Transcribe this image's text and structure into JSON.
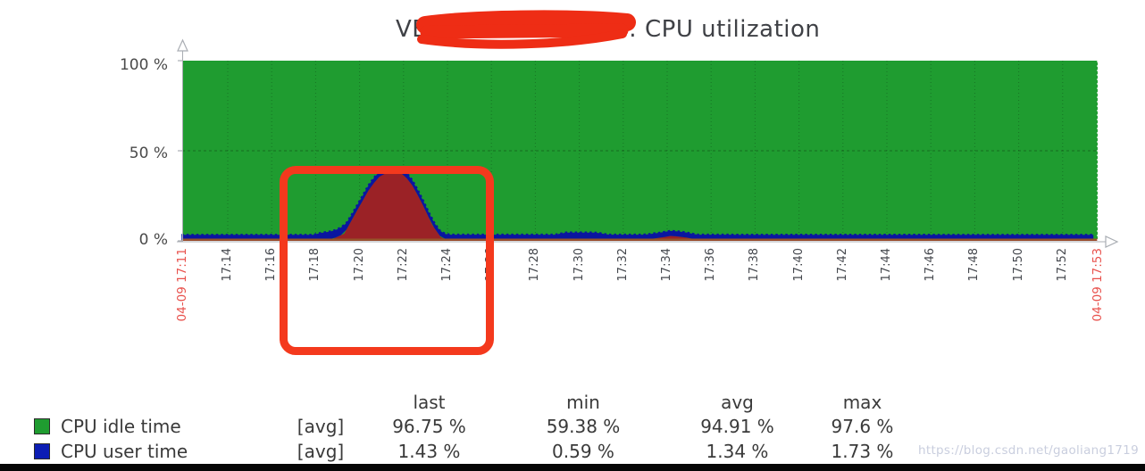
{
  "page": {
    "background": "#ffffff"
  },
  "title": {
    "visible_prefix": "VE",
    "visible_suffix": ": CPU utilization",
    "note": "hostname is covered by a red scribble annotation"
  },
  "colors": {
    "idle_green": "#1f9c30",
    "user_blue": "#0a16a0",
    "spike_red": "#9b2226",
    "baseline_brown": "#96562a",
    "axis_gray": "#a9adb3",
    "grid_dark": "rgba(0,0,0,0.25)",
    "grid_50pct": "rgba(0,0,0,0.30)",
    "right_edge_dash": "rgba(255,255,255,0.85)",
    "annotation_red": "#f4391d",
    "date_label_red": "#e8514c",
    "legend_swatch_idle": "#1f9c30",
    "legend_swatch_user": "#0c1db4",
    "watermark_gray": "#c9cede"
  },
  "chart_data": {
    "type": "area",
    "title": "VE(redacted): CPU utilization",
    "x_unit": "minutes after 17:00 on 04-09",
    "x_axis": {
      "start_label": "04-09 17:11",
      "end_label": "04-09 17:53",
      "ticks": [
        "17:14",
        "17:16",
        "17:18",
        "17:20",
        "17:22",
        "17:24",
        "17:26",
        "17:28",
        "17:30",
        "17:32",
        "17:34",
        "17:36",
        "17:38",
        "17:40",
        "17:42",
        "17:44",
        "17:46",
        "17:48",
        "17:50",
        "17:52"
      ]
    },
    "y_axis": {
      "ticks": [
        "100 %",
        "50 %",
        "0 %"
      ],
      "range": [
        0,
        100
      ],
      "unit": "%"
    },
    "grid": true,
    "series": [
      {
        "name": "CPU idle time",
        "role": "background",
        "color_key": "idle_green",
        "description": "fills chart to 100%; dips to ~59% during the 17:19-17:24 spike and ~94% at 17:34"
      },
      {
        "name": "CPU user time",
        "role": "band",
        "color_key": "user_blue",
        "band_points": [
          [
            11.9,
            2.8
          ],
          [
            17.9,
            2.8
          ],
          [
            18.3,
            4.2
          ],
          [
            19.2,
            4.2
          ],
          [
            19.7,
            2.8
          ],
          [
            28.9,
            2.8
          ],
          [
            29.4,
            4.0
          ],
          [
            30.8,
            4.0
          ],
          [
            31.3,
            2.8
          ],
          [
            53.6,
            2.8
          ]
        ]
      },
      {
        "name": "unlabeled spike series (legend cut off)",
        "role": "area",
        "color_key": "spike_red",
        "points": [
          [
            11.9,
            0.5
          ],
          [
            18.4,
            0.5
          ],
          [
            18.8,
            1.2
          ],
          [
            19.3,
            4
          ],
          [
            19.8,
            15
          ],
          [
            20.5,
            30
          ],
          [
            21.0,
            37
          ],
          [
            21.5,
            38
          ],
          [
            21.9,
            37.5
          ],
          [
            22.3,
            33
          ],
          [
            22.8,
            22
          ],
          [
            23.3,
            9
          ],
          [
            23.7,
            2
          ],
          [
            24.0,
            0.6
          ],
          [
            33.0,
            0.6
          ],
          [
            33.7,
            1.8
          ],
          [
            34.2,
            2.8
          ],
          [
            34.8,
            2.0
          ],
          [
            35.4,
            0.6
          ],
          [
            53.6,
            0.5
          ]
        ]
      },
      {
        "name": "baseline trace",
        "role": "line",
        "color_key": "baseline_brown",
        "value_pct": 0.7
      }
    ]
  },
  "legend": {
    "headers": [
      "last",
      "min",
      "avg",
      "max"
    ],
    "rows": [
      {
        "label": "CPU idle time",
        "func": "[avg]",
        "last": "96.75 %",
        "min": "59.38 %",
        "avg": "94.91 %",
        "max": "97.6 %",
        "color": "#1f9c30"
      },
      {
        "label": "CPU user time",
        "func": "[avg]",
        "last": "1.43 %",
        "min": "0.59 %",
        "avg": "1.34 %",
        "max": "1.73 %",
        "color": "#0c1db4"
      }
    ]
  },
  "watermark": {
    "text": "https://blog.csdn.net/gaoliang1719"
  }
}
